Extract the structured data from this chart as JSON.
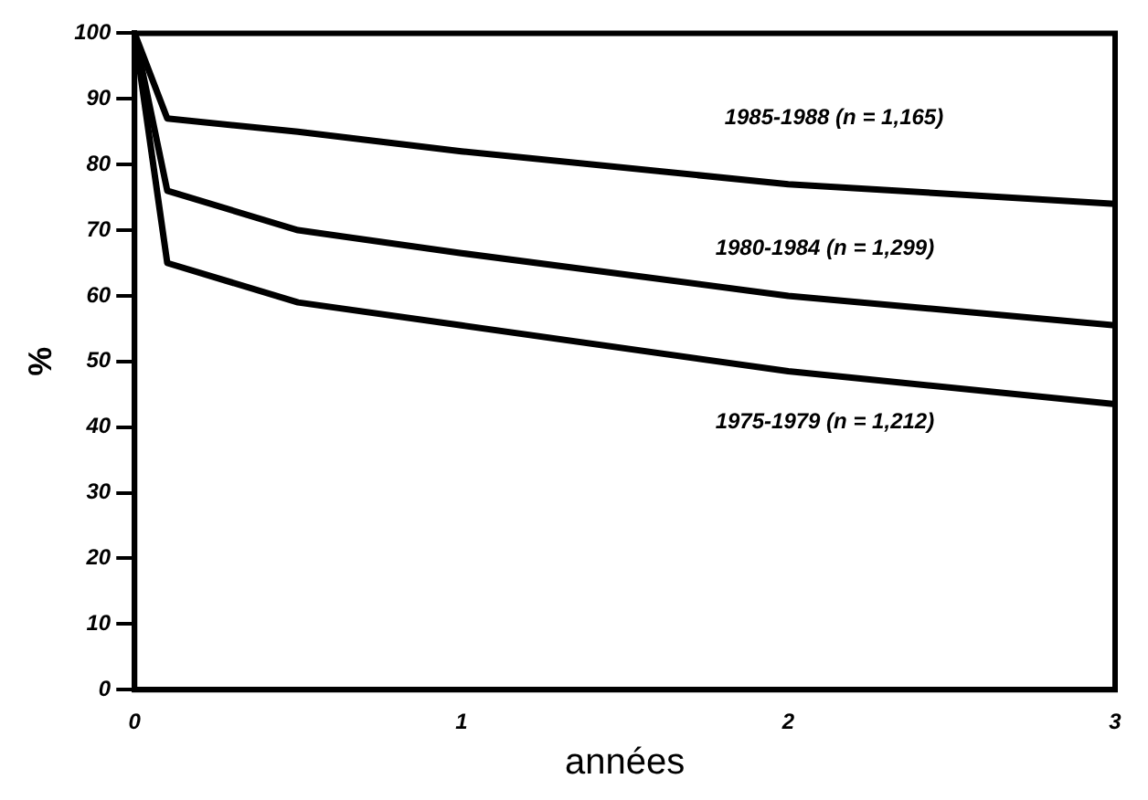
{
  "chart_data": {
    "type": "line",
    "xlabel": "années",
    "ylabel": "%",
    "xlim": [
      0,
      3
    ],
    "xticks": [
      0,
      1,
      2,
      3
    ],
    "ylim": [
      0,
      100
    ],
    "yticks": [
      0,
      10,
      20,
      30,
      40,
      50,
      60,
      70,
      80,
      90,
      100
    ],
    "grid": false,
    "legend": false,
    "marker": "none",
    "line_style": "solid",
    "series": [
      {
        "name": "1985-1988 (n = 1,165)",
        "color": "#000000",
        "x": [
          0,
          0.1,
          0.5,
          1,
          2,
          3
        ],
        "values": [
          100,
          87,
          85,
          82,
          77,
          74
        ]
      },
      {
        "name": "1980-1984 (n = 1,299)",
        "color": "#000000",
        "x": [
          0,
          0.1,
          0.5,
          1,
          2,
          3
        ],
        "values": [
          100,
          76,
          70,
          66.5,
          60,
          55.5
        ]
      },
      {
        "name": "1975-1979 (n = 1,212)",
        "color": "#000000",
        "x": [
          0,
          0.1,
          0.5,
          1,
          2,
          3
        ],
        "values": [
          100,
          65,
          59,
          55.5,
          48.5,
          43.5
        ]
      }
    ]
  }
}
